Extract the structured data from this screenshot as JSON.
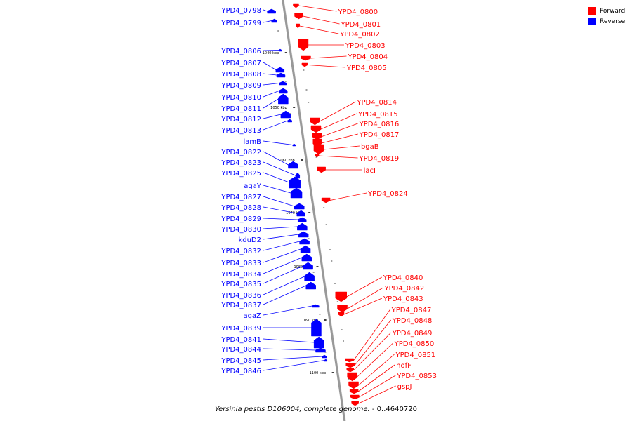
{
  "colors": {
    "forward": "#ff0000",
    "reverse": "#0000ff",
    "axis": "#999999"
  },
  "legend": [
    {
      "label": "Forward",
      "color": "#ff0000"
    },
    {
      "label": "Reverse",
      "color": "#0000ff"
    }
  ],
  "caption": {
    "organism": "Yersinia pestis D106004, complete genome.",
    "range": " - 0..4640720"
  },
  "ticks": [
    "1040 kbp",
    "1050 kbp",
    "1060 kbp",
    "1070 kbp",
    "1080 kbp",
    "1090 kbp",
    "1100 kbp"
  ],
  "forward_genes": [
    "YPD4_0800",
    "YPD4_0801",
    "YPD4_0802",
    "YPD4_0803",
    "YPD4_0804",
    "YPD4_0805",
    "YPD4_0814",
    "YPD4_0815",
    "YPD4_0816",
    "YPD4_0817",
    "bgaB",
    "YPD4_0819",
    "lacI",
    "YPD4_0824",
    "YPD4_0840",
    "YPD4_0842",
    "YPD4_0843",
    "YPD4_0847",
    "YPD4_0848",
    "YPD4_0849",
    "YPD4_0850",
    "YPD4_0851",
    "hofF",
    "YPD4_0853",
    "gspJ"
  ],
  "reverse_genes": [
    "YPD4_0798",
    "YPD4_0799",
    "YPD4_0806",
    "YPD4_0807",
    "YPD4_0808",
    "YPD4_0809",
    "YPD4_0810",
    "YPD4_0811",
    "YPD4_0812",
    "YPD4_0813",
    "lamB",
    "YPD4_0822",
    "YPD4_0823",
    "YPD4_0825",
    "agaY",
    "YPD4_0827",
    "YPD4_0828",
    "YPD4_0829",
    "YPD4_0830",
    "kduD2",
    "YPD4_0832",
    "YPD4_0833",
    "YPD4_0834",
    "YPD4_0835",
    "YPD4_0836",
    "YPD4_0837",
    "agaZ",
    "YPD4_0839",
    "YPD4_0841",
    "YPD4_0844",
    "YPD4_0845",
    "YPD4_0846"
  ]
}
